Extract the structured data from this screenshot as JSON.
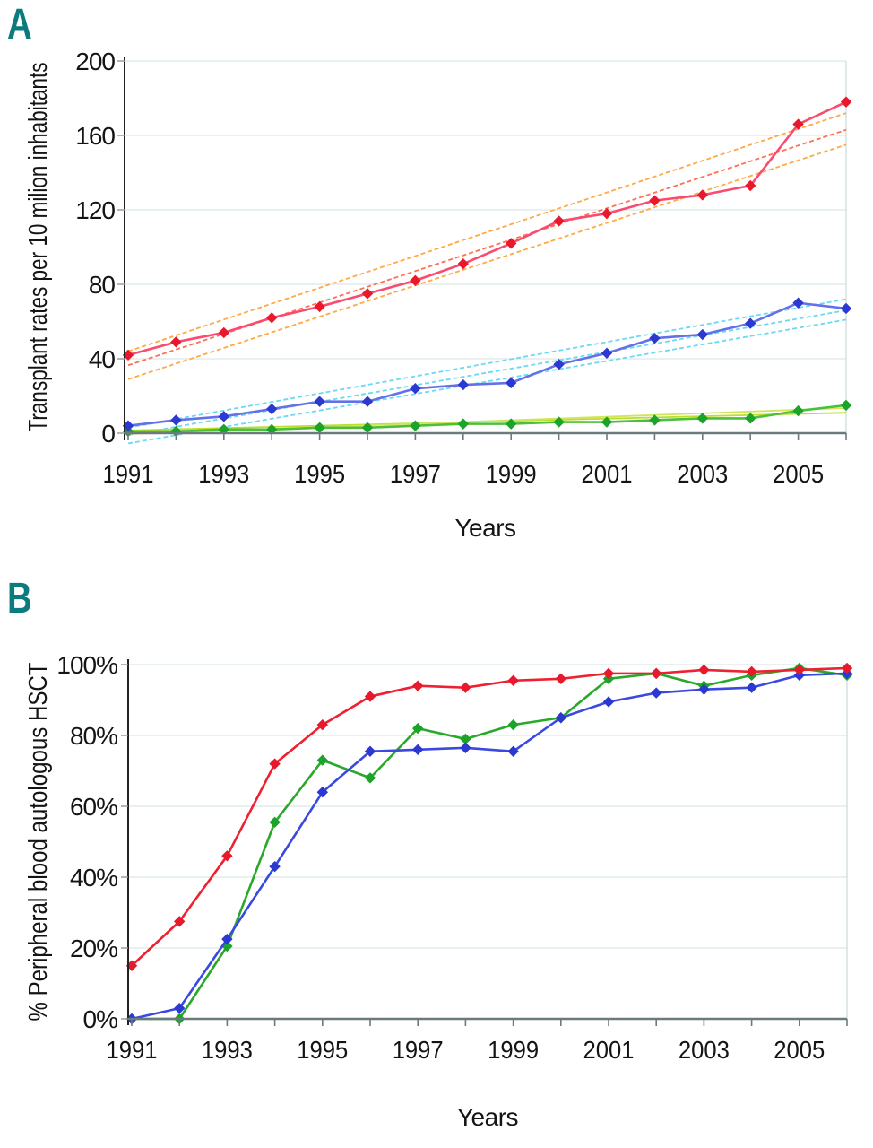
{
  "panels": [
    {
      "label": "A",
      "color": "#0c7b7e"
    },
    {
      "label": "B",
      "color": "#0c7b7e"
    }
  ],
  "chart_data": [
    {
      "type": "line",
      "panel": "A",
      "xlabel": "Years",
      "ylabel": "Transplant rates per 10 milion inhabitants",
      "x": [
        1991,
        1992,
        1993,
        1994,
        1995,
        1996,
        1997,
        1998,
        1999,
        2000,
        2001,
        2002,
        2003,
        2004,
        2005,
        2006
      ],
      "x_tick_years": [
        1991,
        1993,
        1995,
        1997,
        1999,
        2001,
        2003,
        2005
      ],
      "x_tick_labels": [
        "1991",
        "1993",
        "1995",
        "1997",
        "1999",
        "2001",
        "2003",
        "2005"
      ],
      "ylim": [
        0,
        200
      ],
      "yticks": [
        0,
        40,
        80,
        120,
        160,
        200
      ],
      "ytick_labels": [
        "0",
        "40",
        "80",
        "120",
        "160",
        "200"
      ],
      "grid": true,
      "legend": "none",
      "series": [
        {
          "name": "series-green",
          "marker_color": "#1ba32a",
          "line_color": "#4cc03a",
          "values": [
            1,
            1,
            2,
            2,
            3,
            3,
            4,
            5,
            5,
            6,
            6,
            7,
            8,
            8,
            12,
            15
          ]
        },
        {
          "name": "series-blue",
          "marker_color": "#2c38d2",
          "line_color": "#6470e8",
          "values": [
            4,
            7,
            9,
            13,
            17,
            17,
            24,
            26,
            27,
            37,
            43,
            51,
            53,
            59,
            70,
            67
          ]
        },
        {
          "name": "series-red",
          "marker_color": "#e8192c",
          "line_color": "#fa4a70",
          "values": [
            42,
            49,
            54,
            62,
            68,
            75,
            82,
            91,
            102,
            114,
            118,
            125,
            128,
            133,
            166,
            178
          ]
        }
      ],
      "trend_lines": [
        {
          "name": "red-trend-upper",
          "color": "#ffa945",
          "style": "dashed",
          "from": [
            1991,
            44
          ],
          "to": [
            2006,
            172
          ]
        },
        {
          "name": "red-trend-fit",
          "color": "#ff7052",
          "style": "dashed",
          "from": [
            1991,
            36.5
          ],
          "to": [
            2006,
            163
          ]
        },
        {
          "name": "red-trend-lower",
          "color": "#ffa945",
          "style": "dashed",
          "from": [
            1991,
            29
          ],
          "to": [
            2006,
            155
          ]
        },
        {
          "name": "blue-trend-upper",
          "color": "#6ad9f2",
          "style": "dashed",
          "from": [
            1991,
            3
          ],
          "to": [
            2006,
            72
          ]
        },
        {
          "name": "blue-trend-fit",
          "color": "#6ad9f2",
          "style": "dashed",
          "from": [
            1991,
            -1
          ],
          "to": [
            2006,
            66
          ]
        },
        {
          "name": "blue-trend-lower",
          "color": "#6ad9f2",
          "style": "dashed",
          "from": [
            1991,
            -5.5
          ],
          "to": [
            2006,
            61
          ]
        },
        {
          "name": "green-trend-1",
          "color": "#bddc2e",
          "style": "solid",
          "from": [
            1991,
            1.5
          ],
          "to": [
            2006,
            11
          ]
        },
        {
          "name": "green-trend-2",
          "color": "#cfe65c",
          "style": "solid",
          "from": [
            1991,
            -0.5
          ],
          "to": [
            2006,
            13.5
          ]
        }
      ]
    },
    {
      "type": "line",
      "panel": "B",
      "xlabel": "Years",
      "ylabel": "% Peripheral blood autologous HSCT",
      "x": [
        1991,
        1992,
        1993,
        1994,
        1995,
        1996,
        1997,
        1998,
        1999,
        2000,
        2001,
        2002,
        2003,
        2004,
        2005,
        2006
      ],
      "x_tick_years": [
        1991,
        1993,
        1995,
        1997,
        1999,
        2001,
        2003,
        2005
      ],
      "x_tick_labels": [
        "1991",
        "1993",
        "1995",
        "1997",
        "1999",
        "2001",
        "2003",
        "2005"
      ],
      "ylim": [
        0,
        100
      ],
      "yticks": [
        0,
        20,
        40,
        60,
        80,
        100
      ],
      "ytick_labels": [
        "0%",
        "20%",
        "40%",
        "60%",
        "80%",
        "100%"
      ],
      "grid": true,
      "legend": "none",
      "series": [
        {
          "name": "series-green",
          "marker_color": "#1ba32a",
          "line_color": "#2aa82a",
          "values": [
            0,
            0,
            20.5,
            55.5,
            73,
            68,
            82,
            79,
            83,
            85,
            96,
            97.5,
            94,
            97,
            99,
            97
          ]
        },
        {
          "name": "series-blue",
          "marker_color": "#2c38d2",
          "line_color": "#3a49e0",
          "values": [
            0,
            3,
            22.5,
            43,
            64,
            75.5,
            76,
            76.5,
            75.5,
            85,
            89.5,
            92,
            93,
            93.5,
            97,
            97.5
          ]
        },
        {
          "name": "series-red",
          "marker_color": "#e8192c",
          "line_color": "#ee2130",
          "values": [
            15,
            27.5,
            46,
            72,
            83,
            91,
            94,
            93.5,
            95.5,
            96,
            97.5,
            97.5,
            98.5,
            98,
            98.5,
            99
          ]
        }
      ],
      "trend_lines": []
    }
  ]
}
